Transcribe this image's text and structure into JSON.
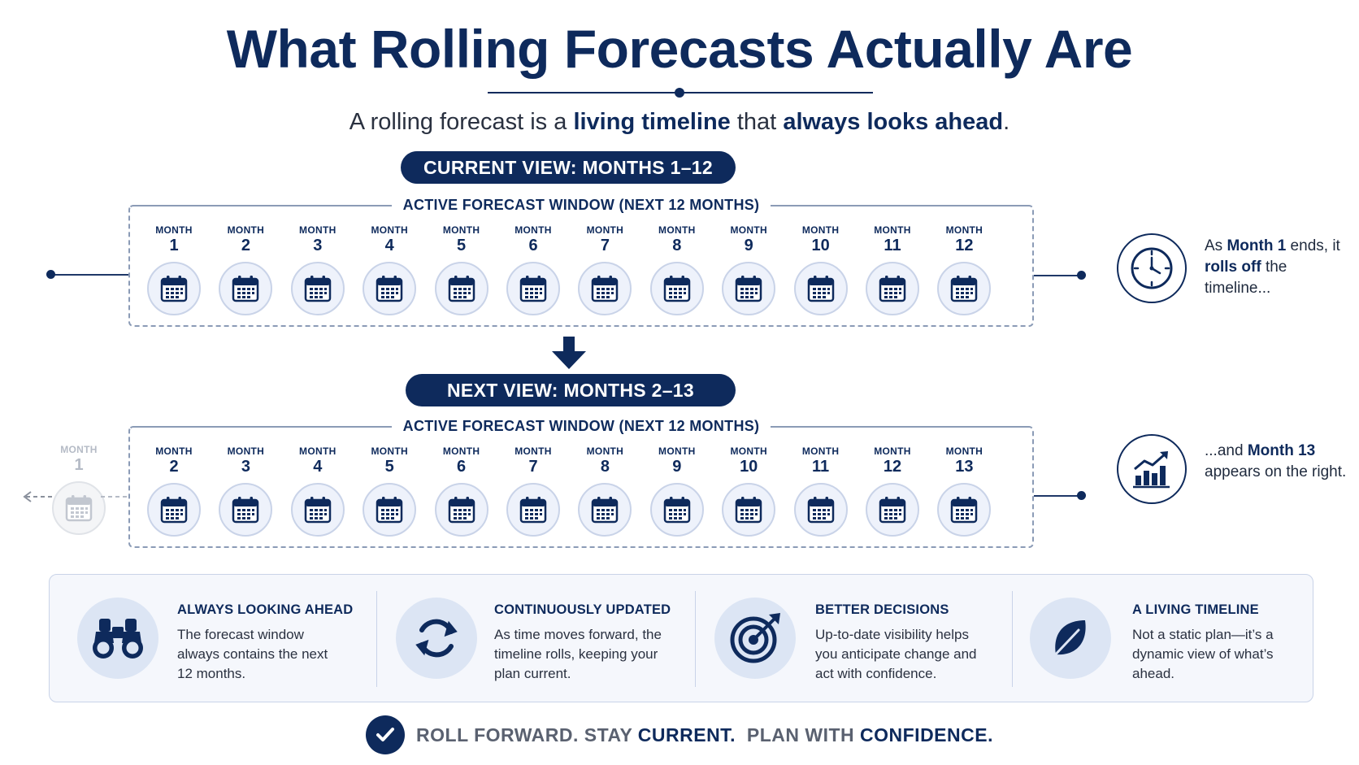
{
  "title": "What Rolling Forecasts Actually Are",
  "subtitle": {
    "p1": "A rolling forecast is a ",
    "b1": "living timeline",
    "p2": " that ",
    "b2": "always looks ahead",
    "p3": "."
  },
  "current_view": {
    "pill": "CURRENT VIEW: MONTHS 1–12",
    "window_label": "ACTIVE FORECAST WINDOW (NEXT 12 MONTHS)",
    "month_word": "MONTH",
    "months": [
      "1",
      "2",
      "3",
      "4",
      "5",
      "6",
      "7",
      "8",
      "9",
      "10",
      "11",
      "12"
    ]
  },
  "next_view": {
    "pill": "NEXT VIEW: MONTHS 2–13",
    "window_label": "ACTIVE FORECAST WINDOW (NEXT 12 MONTHS)",
    "month_word": "MONTH",
    "months": [
      "2",
      "3",
      "4",
      "5",
      "6",
      "7",
      "8",
      "9",
      "10",
      "11",
      "12",
      "13"
    ],
    "rolled_off_word": "MONTH",
    "rolled_off_num": "1"
  },
  "side_notes": {
    "top": {
      "p1": "As ",
      "b1": "Month 1",
      "p2": " ends, it ",
      "b2": "rolls off",
      "p3": " the timeline...",
      "icon": "clock-icon"
    },
    "bottom": {
      "p1": "...and ",
      "b1": "Month 13",
      "p2": " appears on the right.",
      "icon": "growth-chart-icon"
    }
  },
  "features": [
    {
      "title": "ALWAYS LOOKING AHEAD",
      "text": "The forecast window always contains the next 12 months.",
      "icon": "binoculars-icon"
    },
    {
      "title": "CONTINUOUSLY UPDATED",
      "text": "As time moves forward, the timeline rolls, keeping your plan current.",
      "icon": "refresh-icon"
    },
    {
      "title": "BETTER DECISIONS",
      "text": "Up-to-date visibility helps you anticipate change and act with confidence.",
      "icon": "target-icon"
    },
    {
      "title": "A LIVING TIMELINE",
      "text": "Not a static plan—it’s a dynamic view of what’s ahead.",
      "icon": "leaf-icon"
    }
  ],
  "footer": {
    "p1": "ROLL FORWARD. STAY ",
    "b1": "CURRENT.",
    "p2": "  PLAN WITH ",
    "b2": "CONFIDENCE."
  },
  "colors": {
    "navy": "#0e2a5c",
    "light_blue": "#dce5f4",
    "border": "#8b9bb6"
  }
}
